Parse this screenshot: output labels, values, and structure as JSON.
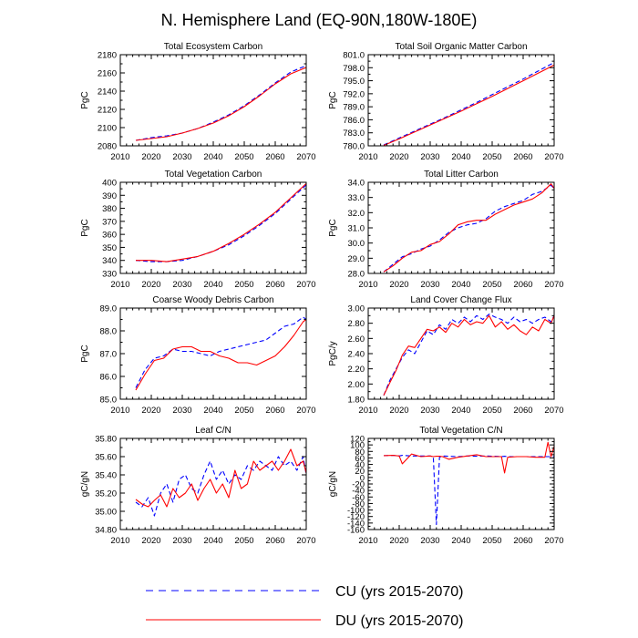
{
  "title": "N. Hemisphere Land (EQ-90N,180W-180E)",
  "legend": {
    "entries": [
      {
        "label": "CU (yrs 2015-2070)",
        "color": "#0000ff",
        "style": "dashed"
      },
      {
        "label": "DU (yrs 2015-2070)",
        "color": "#ff0000",
        "style": "solid"
      }
    ]
  },
  "colors": {
    "CU": "#0000ff",
    "DU": "#ff0000"
  },
  "chart_data": [
    {
      "type": "line",
      "title": "Total Ecosystem Carbon",
      "xlabel": "",
      "ylabel": "PgC",
      "xlim": [
        2010,
        2070
      ],
      "ylim": [
        2080,
        2180
      ],
      "xticks": [
        2010,
        2020,
        2030,
        2040,
        2050,
        2060,
        2070
      ],
      "yticks": [
        2080,
        2100,
        2120,
        2140,
        2160,
        2180
      ],
      "ytick_labels": [
        "2080",
        "2100",
        "2120",
        "2140",
        "2160",
        "2180"
      ],
      "x": [
        2015,
        2020,
        2025,
        2030,
        2035,
        2040,
        2045,
        2050,
        2055,
        2060,
        2065,
        2070
      ],
      "series": [
        {
          "name": "CU (yrs 2015-2070)",
          "values": [
            2086,
            2089,
            2091,
            2094,
            2099,
            2106,
            2114,
            2124,
            2136,
            2149,
            2161,
            2168
          ]
        },
        {
          "name": "DU (yrs 2015-2070)",
          "values": [
            2086,
            2088,
            2090,
            2094,
            2099,
            2105,
            2113,
            2123,
            2135,
            2148,
            2159,
            2166
          ]
        }
      ]
    },
    {
      "type": "line",
      "title": "Total Soil Organic Matter Carbon",
      "xlabel": "",
      "ylabel": "PgC",
      "xlim": [
        2010,
        2070
      ],
      "ylim": [
        780,
        801
      ],
      "xticks": [
        2010,
        2020,
        2030,
        2040,
        2050,
        2060,
        2070
      ],
      "yticks": [
        780,
        783,
        786,
        789,
        792,
        795,
        798,
        801
      ],
      "ytick_labels": [
        "780.0",
        "783.0",
        "786.0",
        "789.0",
        "792.0",
        "795.0",
        "798.0",
        "801.0"
      ],
      "x": [
        2015,
        2020,
        2025,
        2030,
        2035,
        2040,
        2045,
        2050,
        2055,
        2060,
        2065,
        2070
      ],
      "series": [
        {
          "name": "CU (yrs 2015-2070)",
          "values": [
            780.2,
            781.8,
            783.4,
            785.0,
            786.6,
            788.3,
            790.0,
            791.8,
            793.6,
            795.4,
            797.3,
            799.2
          ]
        },
        {
          "name": "DU (yrs 2015-2070)",
          "values": [
            780.1,
            781.6,
            783.2,
            784.8,
            786.4,
            788.0,
            789.7,
            791.4,
            793.2,
            795.0,
            796.8,
            798.6
          ]
        }
      ]
    },
    {
      "type": "line",
      "title": "Total Vegetation Carbon",
      "xlabel": "",
      "ylabel": "PgC",
      "xlim": [
        2010,
        2070
      ],
      "ylim": [
        330,
        400
      ],
      "xticks": [
        2010,
        2020,
        2030,
        2040,
        2050,
        2060,
        2070
      ],
      "yticks": [
        330,
        340,
        350,
        360,
        370,
        380,
        390,
        400
      ],
      "ytick_labels": [
        "330",
        "340",
        "350",
        "360",
        "370",
        "380",
        "390",
        "400"
      ],
      "x": [
        2015,
        2020,
        2025,
        2030,
        2035,
        2040,
        2045,
        2050,
        2055,
        2060,
        2065,
        2070
      ],
      "series": [
        {
          "name": "CU (yrs 2015-2070)",
          "values": [
            340,
            339,
            339,
            340,
            343,
            347,
            352,
            359,
            367,
            376,
            387,
            398
          ]
        },
        {
          "name": "DU (yrs 2015-2070)",
          "values": [
            340,
            340,
            339,
            341,
            343,
            347,
            353,
            360,
            368,
            377,
            388,
            399
          ]
        }
      ]
    },
    {
      "type": "line",
      "title": "Total Litter Carbon",
      "xlabel": "",
      "ylabel": "PgC",
      "xlim": [
        2010,
        2070
      ],
      "ylim": [
        28,
        34
      ],
      "xticks": [
        2010,
        2020,
        2030,
        2040,
        2050,
        2060,
        2070
      ],
      "yticks": [
        28,
        29,
        30,
        31,
        32,
        33,
        34
      ],
      "ytick_labels": [
        "28.0",
        "29.0",
        "30.0",
        "31.0",
        "32.0",
        "33.0",
        "34.0"
      ],
      "x": [
        2015,
        2018,
        2021,
        2024,
        2027,
        2030,
        2033,
        2036,
        2039,
        2042,
        2045,
        2048,
        2051,
        2054,
        2057,
        2060,
        2063,
        2066,
        2069,
        2070
      ],
      "series": [
        {
          "name": "CU (yrs 2015-2070)",
          "values": [
            28.1,
            28.6,
            29.1,
            29.3,
            29.6,
            29.8,
            30.2,
            30.7,
            31.0,
            31.2,
            31.3,
            31.6,
            32.1,
            32.4,
            32.6,
            32.8,
            33.2,
            33.4,
            33.8,
            33.6
          ]
        },
        {
          "name": "DU (yrs 2015-2070)",
          "values": [
            28.1,
            28.5,
            29.0,
            29.4,
            29.5,
            29.9,
            30.1,
            30.6,
            31.2,
            31.4,
            31.5,
            31.5,
            31.9,
            32.2,
            32.5,
            32.7,
            32.9,
            33.3,
            33.9,
            33.6
          ]
        }
      ]
    },
    {
      "type": "line",
      "title": "Coarse Woody Debris Carbon",
      "xlabel": "",
      "ylabel": "PgC",
      "xlim": [
        2010,
        2070
      ],
      "ylim": [
        85,
        89
      ],
      "xticks": [
        2010,
        2020,
        2030,
        2040,
        2050,
        2060,
        2070
      ],
      "yticks": [
        85,
        86,
        87,
        88,
        89
      ],
      "ytick_labels": [
        "85.0",
        "86.0",
        "87.0",
        "88.0",
        "89.0"
      ],
      "x": [
        2015,
        2018,
        2021,
        2024,
        2027,
        2030,
        2033,
        2036,
        2039,
        2042,
        2045,
        2048,
        2051,
        2054,
        2057,
        2060,
        2063,
        2066,
        2069,
        2070
      ],
      "series": [
        {
          "name": "CU (yrs 2015-2070)",
          "values": [
            85.5,
            86.3,
            86.8,
            86.9,
            87.2,
            87.1,
            87.1,
            87.0,
            86.9,
            87.1,
            87.2,
            87.3,
            87.4,
            87.5,
            87.6,
            87.9,
            88.2,
            88.3,
            88.6,
            88.5
          ]
        },
        {
          "name": "DU (yrs 2015-2070)",
          "values": [
            85.4,
            86.1,
            86.7,
            86.8,
            87.2,
            87.3,
            87.3,
            87.1,
            87.1,
            86.9,
            86.8,
            86.6,
            86.6,
            86.5,
            86.7,
            86.9,
            87.3,
            87.8,
            88.4,
            88.5
          ]
        }
      ]
    },
    {
      "type": "line",
      "title": "Land Cover Change Flux",
      "xlabel": "",
      "ylabel": "PgC/y",
      "xlim": [
        2010,
        2070
      ],
      "ylim": [
        1.8,
        3.0
      ],
      "xticks": [
        2010,
        2020,
        2030,
        2040,
        2050,
        2060,
        2070
      ],
      "yticks": [
        1.8,
        2.0,
        2.2,
        2.4,
        2.6,
        2.8,
        3.0
      ],
      "ytick_labels": [
        "1.80",
        "2.00",
        "2.20",
        "2.40",
        "2.60",
        "2.80",
        "3.00"
      ],
      "x": [
        2015,
        2017,
        2019,
        2021,
        2023,
        2025,
        2027,
        2029,
        2031,
        2033,
        2035,
        2037,
        2039,
        2041,
        2043,
        2045,
        2047,
        2049,
        2051,
        2053,
        2055,
        2057,
        2059,
        2061,
        2063,
        2065,
        2067,
        2069,
        2070
      ],
      "series": [
        {
          "name": "CU (yrs 2015-2070)",
          "values": [
            1.85,
            2.05,
            2.2,
            2.35,
            2.45,
            2.4,
            2.55,
            2.7,
            2.65,
            2.78,
            2.72,
            2.85,
            2.8,
            2.88,
            2.82,
            2.9,
            2.85,
            2.92,
            2.88,
            2.85,
            2.8,
            2.88,
            2.82,
            2.85,
            2.8,
            2.85,
            2.88,
            2.82,
            2.9
          ]
        },
        {
          "name": "DU (yrs 2015-2070)",
          "values": [
            1.85,
            2.02,
            2.18,
            2.38,
            2.5,
            2.48,
            2.6,
            2.72,
            2.7,
            2.75,
            2.68,
            2.8,
            2.75,
            2.85,
            2.78,
            2.82,
            2.8,
            2.9,
            2.75,
            2.82,
            2.72,
            2.78,
            2.7,
            2.65,
            2.75,
            2.7,
            2.85,
            2.8,
            2.9
          ]
        }
      ]
    },
    {
      "type": "line",
      "title": "Leaf C/N",
      "xlabel": "",
      "ylabel": "gC/gN",
      "xlim": [
        2010,
        2070
      ],
      "ylim": [
        34.8,
        35.8
      ],
      "xticks": [
        2010,
        2020,
        2030,
        2040,
        2050,
        2060,
        2070
      ],
      "yticks": [
        34.8,
        35.0,
        35.2,
        35.4,
        35.6,
        35.8
      ],
      "ytick_labels": [
        "34.80",
        "35.00",
        "35.20",
        "35.40",
        "35.60",
        "35.80"
      ],
      "x": [
        2015,
        2017,
        2019,
        2021,
        2023,
        2025,
        2027,
        2029,
        2031,
        2033,
        2035,
        2037,
        2039,
        2041,
        2043,
        2045,
        2047,
        2049,
        2051,
        2053,
        2055,
        2057,
        2059,
        2061,
        2063,
        2065,
        2067,
        2069,
        2070
      ],
      "series": [
        {
          "name": "CU (yrs 2015-2070)",
          "values": [
            35.1,
            35.05,
            35.15,
            34.95,
            35.2,
            35.3,
            35.1,
            35.35,
            35.4,
            35.25,
            35.2,
            35.4,
            35.55,
            35.35,
            35.45,
            35.3,
            35.4,
            35.35,
            35.5,
            35.45,
            35.55,
            35.5,
            35.45,
            35.6,
            35.5,
            35.55,
            35.45,
            35.6,
            35.4
          ]
        },
        {
          "name": "DU (yrs 2015-2070)",
          "values": [
            35.13,
            35.08,
            35.05,
            35.12,
            35.18,
            35.05,
            35.25,
            35.15,
            35.2,
            35.3,
            35.12,
            35.25,
            35.35,
            35.2,
            35.3,
            35.15,
            35.45,
            35.25,
            35.3,
            35.55,
            35.45,
            35.5,
            35.55,
            35.45,
            35.55,
            35.68,
            35.5,
            35.55,
            35.42
          ]
        }
      ]
    },
    {
      "type": "line",
      "title": "Total Vegetation C/N",
      "xlabel": "",
      "ylabel": "gC/gN",
      "xlim": [
        2010,
        2070
      ],
      "ylim": [
        -160,
        120
      ],
      "xticks": [
        2010,
        2020,
        2030,
        2040,
        2050,
        2060,
        2070
      ],
      "yticks": [
        -160,
        -140,
        -120,
        -100,
        -80,
        -60,
        -40,
        -20,
        0,
        20,
        40,
        60,
        80,
        100,
        120
      ],
      "ytick_labels": [
        "-160",
        "-140",
        "-120",
        "-100",
        "-80",
        "-60",
        "-40",
        "-20",
        "0",
        "20",
        "40",
        "60",
        "80",
        "100",
        "120"
      ],
      "x": [
        2015,
        2018,
        2020,
        2021,
        2024,
        2027,
        2030,
        2031,
        2032,
        2033,
        2034,
        2036,
        2039,
        2042,
        2045,
        2048,
        2051,
        2053,
        2054,
        2055,
        2058,
        2061,
        2064,
        2067,
        2068,
        2069,
        2070
      ],
      "series": [
        {
          "name": "CU (yrs 2015-2070)",
          "values": [
            67,
            68,
            66,
            68,
            66,
            66,
            66,
            64,
            -145,
            62,
            66,
            65,
            64,
            66,
            65,
            66,
            65,
            64,
            65,
            64,
            64,
            64,
            64,
            64,
            64,
            64,
            64
          ]
        },
        {
          "name": "DU (yrs 2015-2070)",
          "values": [
            67,
            68,
            66,
            42,
            72,
            64,
            66,
            64,
            65,
            65,
            64,
            56,
            62,
            66,
            70,
            64,
            64,
            64,
            14,
            62,
            64,
            64,
            62,
            62,
            108,
            64,
            96
          ]
        }
      ]
    }
  ]
}
